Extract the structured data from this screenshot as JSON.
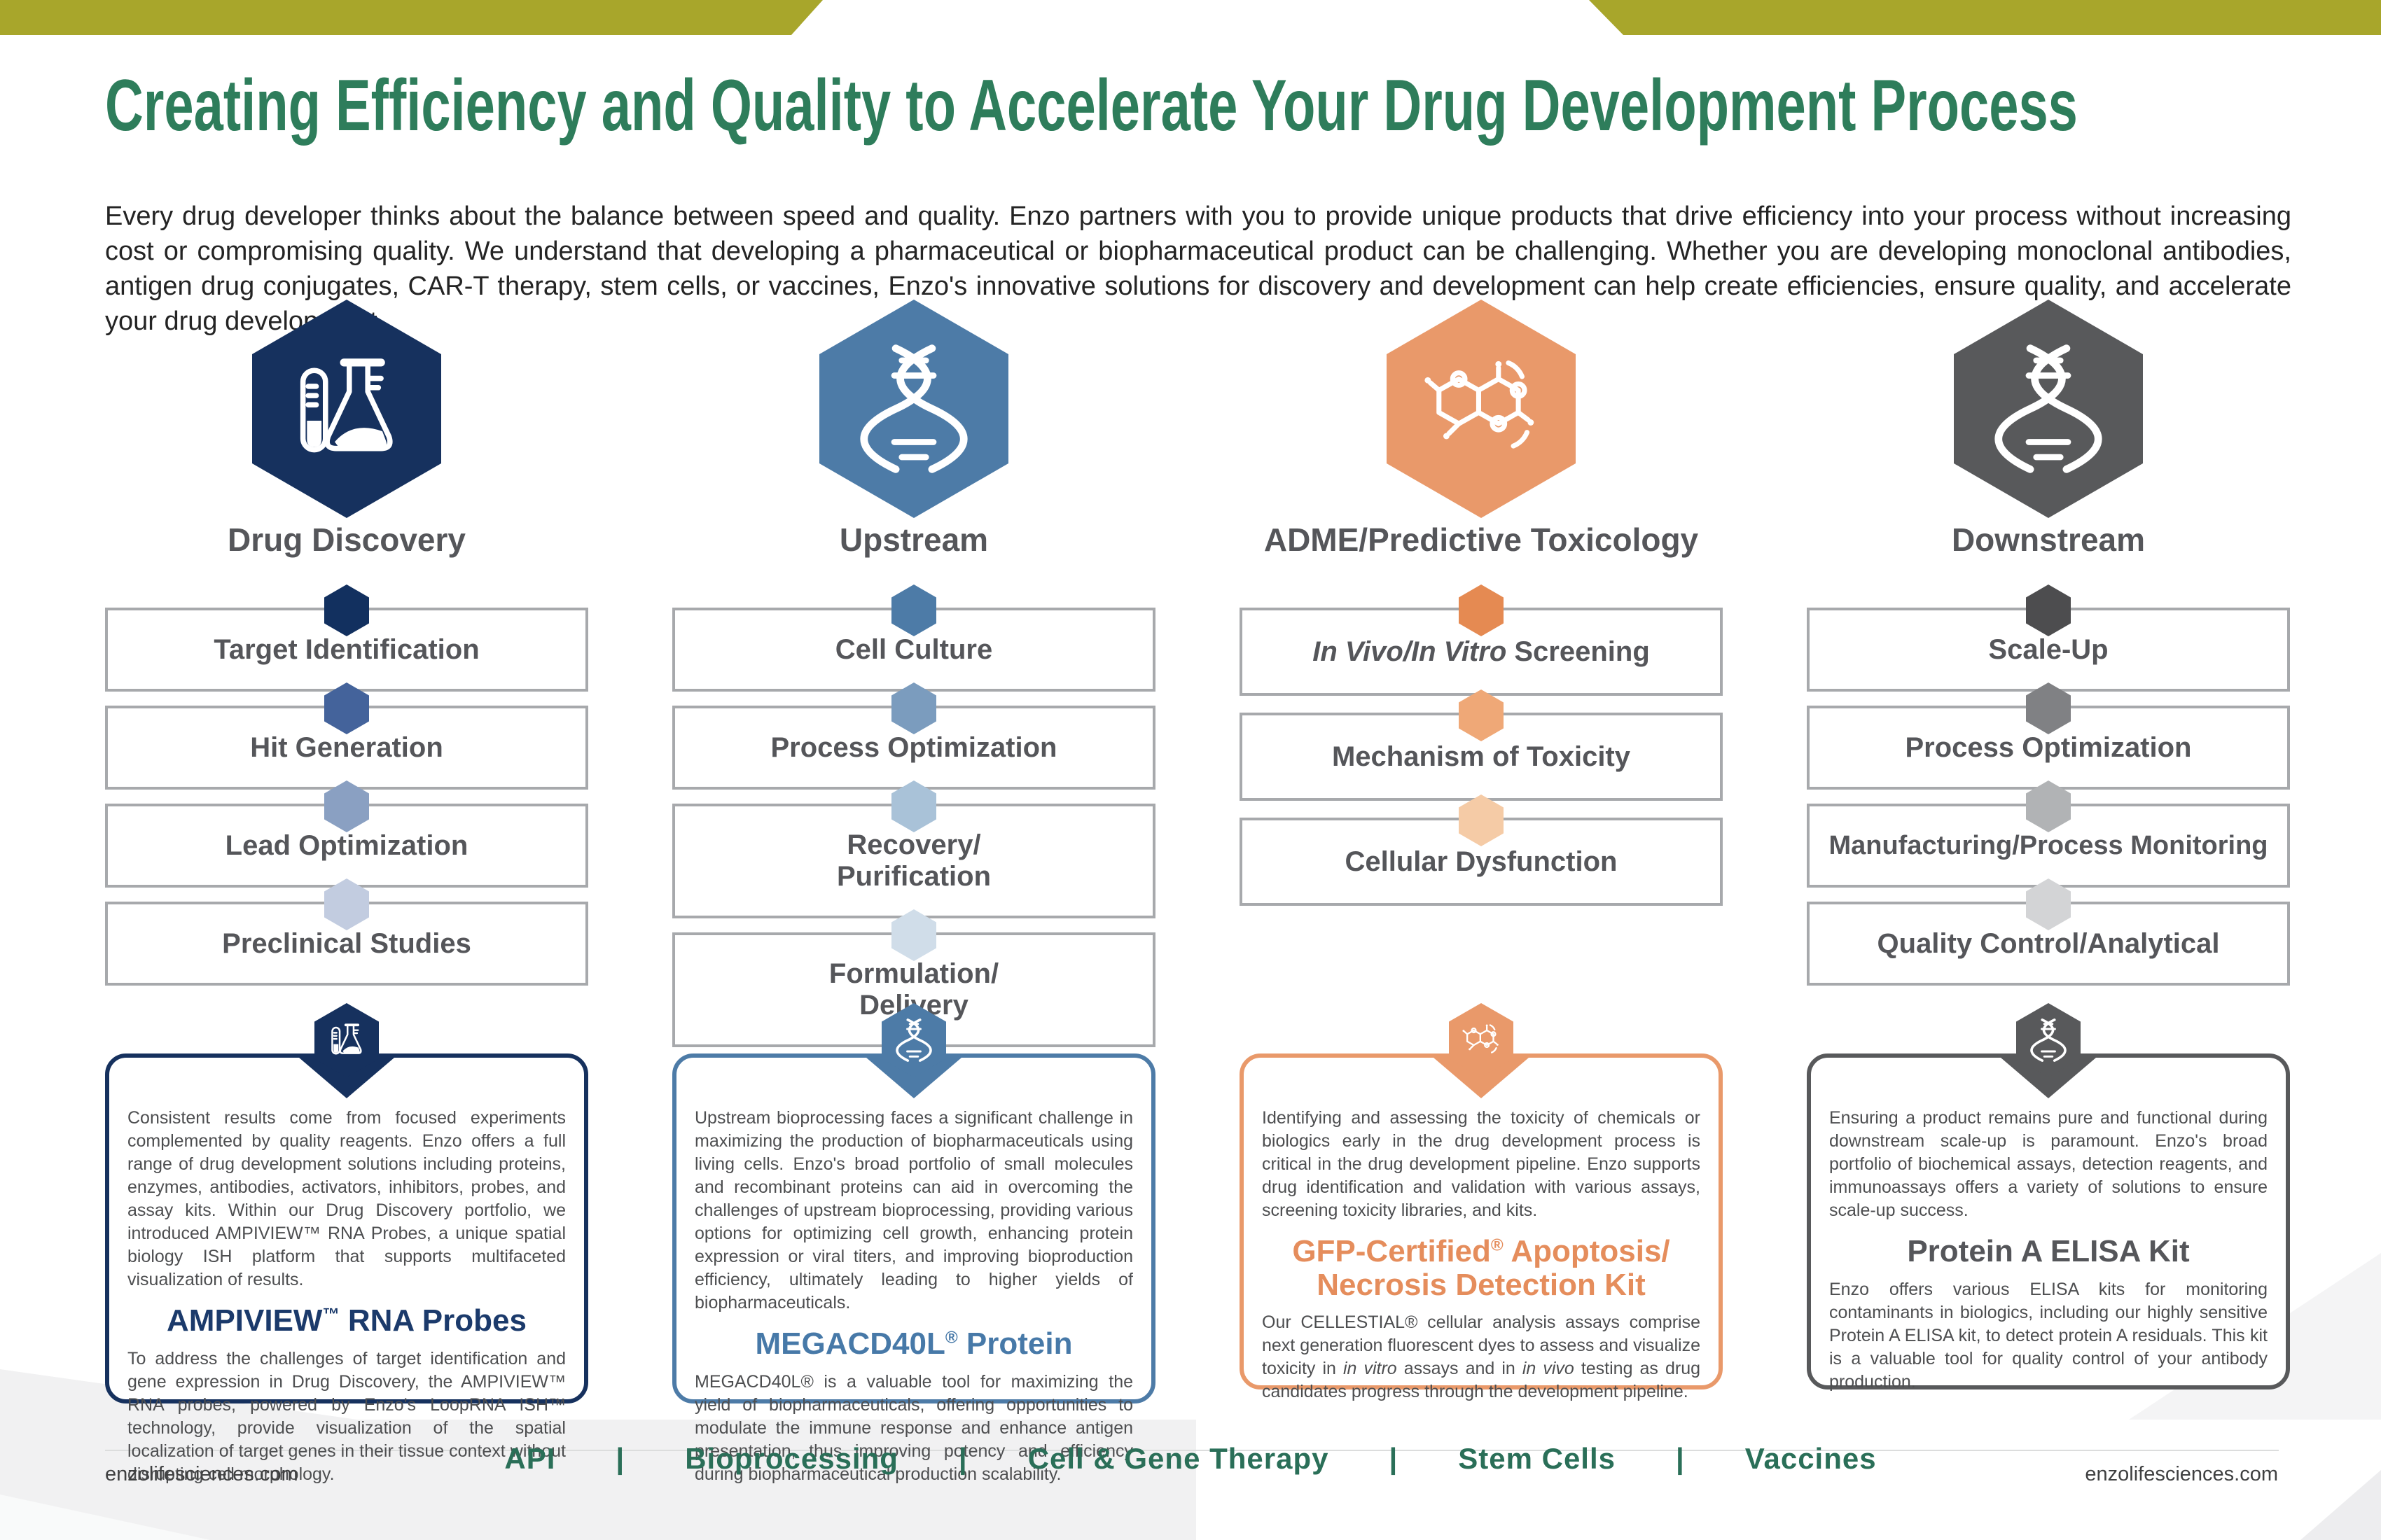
{
  "page": {
    "title": "Creating Efficiency and Quality to Accelerate Your Drug Development Process",
    "intro": "Every drug developer thinks about the balance between speed and quality. Enzo partners with you to provide unique products that drive efficiency into your process without increasing cost or compromising quality. We understand that developing a pharmaceutical or biopharmaceutical product can be challenging. Whether you are developing monoclonal antibodies, antigen drug conjugates, CAR-T therapy, stem cells, or vaccines, Enzo's innovative solutions for discovery and development can help create efficiencies, ensure quality, and accelerate your drug development.",
    "website_left": "enzolifesciences.com",
    "website_right": "enzolifesciences.com"
  },
  "colors": {
    "top_band": "#a8a62b",
    "title_green": "#2e7d5b",
    "intro_text": "#242424",
    "step_border": "#a7a9ac",
    "step_text": "#55565a",
    "panel_text": "#4d4e50",
    "footer_green": "#2a6f58",
    "footer_rule": "#dcdddd",
    "bg_shape": "#f1f1f2",
    "website_text": "#3f4041"
  },
  "columns": [
    {
      "title": "Drug Discovery",
      "icon": "flask-icon",
      "accent": "#16315e",
      "heading_color": "#1b3a6b",
      "steps": [
        {
          "label": "Target Identification",
          "hex": "#12305f"
        },
        {
          "label": "Hit Generation",
          "hex": "#44639b"
        },
        {
          "label": "Lead Optimization",
          "hex": "#8aa0c2"
        },
        {
          "label": "Preclinical Studies",
          "hex": "#c2cce0"
        }
      ],
      "panel": {
        "intro": "Consistent results come from focused experiments complemented by quality reagents. Enzo offers a full range of drug development solutions including proteins, enzymes, antibodies, activators, inhibitors, probes, and assay kits. Within our Drug Discovery portfolio, we introduced AMPIVIEW™ RNA Probes, a unique spatial biology ISH platform that supports multifaceted visualization of results.",
        "heading": "AMPIVIEW<sup>™</sup> RNA Probes",
        "detail": "To address the challenges of target identification and gene expression in Drug Discovery, the AMPIVIEW™ RNA probes, powered by Enzo's LoopRNA ISH™ technology, provide visualization of the spatial localization of target genes in their tissue context without disrupting cell morphology."
      }
    },
    {
      "title": "Upstream",
      "icon": "dna-icon",
      "accent": "#4d7ba7",
      "heading_color": "#4779a8",
      "steps": [
        {
          "label": "Cell Culture",
          "hex": "#4d7ba7"
        },
        {
          "label": "Process Optimization",
          "hex": "#7b9cbe"
        },
        {
          "label": "Recovery/<br>Purification",
          "hex": "#a9c2d8"
        },
        {
          "label": "Formulation/<br>Delivery",
          "hex": "#d0dde9"
        }
      ],
      "panel": {
        "intro": "Upstream bioprocessing faces a significant challenge in maximizing the production of biopharmaceuticals using living cells. Enzo's broad portfolio of small molecules and recombinant proteins can aid in overcoming the challenges of upstream bioprocessing, providing various options for optimizing cell growth, enhancing protein expression or viral titers, and improving bioproduction efficiency, ultimately leading to higher yields of biopharmaceuticals.",
        "heading": "MEGACD40L<sup>®</sup> Protein",
        "detail": "MEGACD40L® is a valuable tool for maximizing the yield of biopharmaceuticals, offering opportunities to modulate the immune response and enhance antigen presentation, thus improving potency and efficiency during biopharmaceutical production scalability."
      }
    },
    {
      "title": "ADME/Predictive Toxicology",
      "icon": "molecule-icon",
      "accent": "#e9996a",
      "heading_color": "#e58d5c",
      "steps": [
        {
          "label": "<i>In Vivo/In Vitro</i> Screening",
          "hex": "#e58a52"
        },
        {
          "label": "Mechanism of Toxicity",
          "hex": "#efa877"
        },
        {
          "label": "Cellular Dysfunction",
          "hex": "#f5cba6"
        }
      ],
      "panel": {
        "intro": "Identifying and assessing the toxicity of chemicals or biologics early in the drug development process is critical in the drug development pipeline. Enzo supports drug identification and validation with various assays, screening toxicity libraries, and kits.",
        "heading": "GFP-Certified<sup>®</sup> Apoptosis/<br>Necrosis Detection Kit",
        "detail": "Our CELLESTIAL® cellular analysis assays comprise next generation fluorescent dyes to assess and visualize toxicity in <i>in vitro</i> assays and in <i>in vivo</i> testing as drug candidates progress through the development pipeline."
      }
    },
    {
      "title": "Downstream",
      "icon": "dna-icon",
      "accent": "#58595b",
      "heading_color": "#55565a",
      "steps": [
        {
          "label": "Scale-Up",
          "hex": "#4d4d4f"
        },
        {
          "label": "Process Optimization",
          "hex": "#808184"
        },
        {
          "label": "Manufacturing/Process Monitoring",
          "hex": "#b1b3b5"
        },
        {
          "label": "Quality Control/Analytical",
          "hex": "#d3d4d6"
        }
      ],
      "panel": {
        "intro": "Ensuring a product remains pure and functional during downstream scale-up is paramount. Enzo's broad portfolio of biochemical assays, detection reagents, and immunoassays offers a variety of solutions to ensure scale-up success.",
        "heading": "Protein A ELISA Kit",
        "detail": "Enzo offers various ELISA kits for monitoring contaminants in biologics, including our highly sensitive Protein A ELISA kit, to detect protein A residuals. This kit is a valuable tool for quality control of your antibody production."
      }
    }
  ],
  "footer": {
    "separator": "|",
    "items": [
      "API",
      "Bioprocessing",
      "Cell & Gene Therapy",
      "Stem Cells",
      "Vaccines"
    ]
  }
}
